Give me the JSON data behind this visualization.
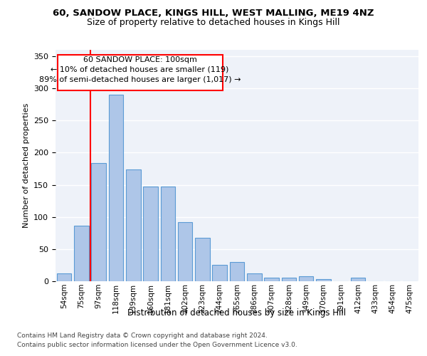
{
  "title1": "60, SANDOW PLACE, KINGS HILL, WEST MALLING, ME19 4NZ",
  "title2": "Size of property relative to detached houses in Kings Hill",
  "xlabel": "Distribution of detached houses by size in Kings Hill",
  "ylabel": "Number of detached properties",
  "bar_labels": [
    "54sqm",
    "75sqm",
    "97sqm",
    "118sqm",
    "139sqm",
    "160sqm",
    "181sqm",
    "202sqm",
    "223sqm",
    "244sqm",
    "265sqm",
    "286sqm",
    "307sqm",
    "328sqm",
    "349sqm",
    "370sqm",
    "391sqm",
    "412sqm",
    "433sqm",
    "454sqm",
    "475sqm"
  ],
  "bar_values": [
    12,
    86,
    184,
    290,
    174,
    147,
    147,
    92,
    68,
    25,
    30,
    12,
    5,
    6,
    8,
    3,
    0,
    6,
    0,
    0,
    0
  ],
  "bar_color": "#aec6e8",
  "bar_edgecolor": "#5b9bd5",
  "vline_x": 1.5,
  "vline_color": "red",
  "annotation_line1": "60 SANDOW PLACE: 100sqm",
  "annotation_line2": "← 10% of detached houses are smaller (119)",
  "annotation_line3": "89% of semi-detached houses are larger (1,017) →",
  "annotation_box_color": "white",
  "annotation_box_edgecolor": "red",
  "yticks": [
    0,
    50,
    100,
    150,
    200,
    250,
    300,
    350
  ],
  "ylim": [
    0,
    360
  ],
  "footer1": "Contains HM Land Registry data © Crown copyright and database right 2024.",
  "footer2": "Contains public sector information licensed under the Open Government Licence v3.0.",
  "plot_bg_color": "#eef2f9"
}
